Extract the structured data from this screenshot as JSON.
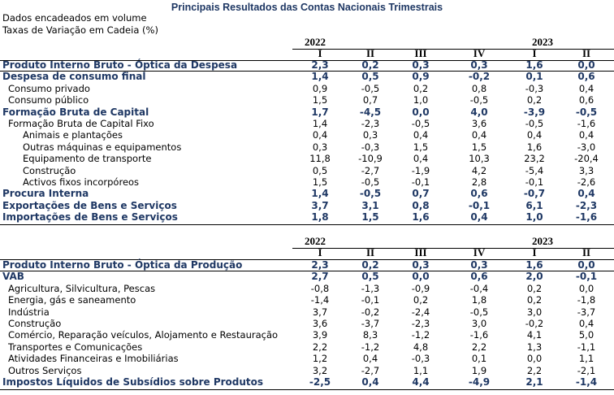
{
  "title": "Principais Resultados das Contas Nacionais Trimestrais",
  "notes": [
    "Dados encadeados em volume",
    "Taxas de Variação em Cadeia (%)"
  ],
  "years": [
    "2022",
    "2023"
  ],
  "quarters": [
    "I",
    "II",
    "III",
    "IV",
    "I",
    "II"
  ],
  "table1": [
    {
      "label": "Produto Interno Bruto - Óptica da Despesa",
      "style": "blue",
      "indent": 0,
      "values": [
        "2,3",
        "0,2",
        "0,3",
        "0,3",
        "1,6",
        "0,0"
      ]
    },
    {
      "label": "Despesa de consumo final",
      "style": "blue",
      "indent": 0,
      "values": [
        "1,4",
        "0,5",
        "0,9",
        "-0,2",
        "0,1",
        "0,6"
      ]
    },
    {
      "label": "Consumo privado",
      "style": "plain",
      "indent": 1,
      "values": [
        "0,9",
        "-0,5",
        "0,2",
        "0,8",
        "-0,3",
        "0,4"
      ]
    },
    {
      "label": "Consumo público",
      "style": "plain",
      "indent": 1,
      "values": [
        "1,5",
        "0,7",
        "1,0",
        "-0,5",
        "0,2",
        "0,6"
      ]
    },
    {
      "label": "Formação Bruta de Capital",
      "style": "blue",
      "indent": 0,
      "values": [
        "1,7",
        "-4,5",
        "0,0",
        "4,0",
        "-3,9",
        "-0,5"
      ]
    },
    {
      "label": "Formação Bruta de Capital Fixo",
      "style": "plain",
      "indent": 1,
      "values": [
        "1,4",
        "-2,3",
        "-0,5",
        "3,6",
        "-0,5",
        "-1,6"
      ]
    },
    {
      "label": "Animais e plantações",
      "style": "plain",
      "indent": 2,
      "values": [
        "0,4",
        "0,3",
        "0,4",
        "0,4",
        "0,4",
        "0,4"
      ]
    },
    {
      "label": "Outras máquinas e equipamentos",
      "style": "plain",
      "indent": 2,
      "values": [
        "0,3",
        "-0,3",
        "1,5",
        "1,5",
        "1,6",
        "-3,0"
      ]
    },
    {
      "label": "Equipamento de transporte",
      "style": "plain",
      "indent": 2,
      "values": [
        "11,8",
        "-10,9",
        "0,4",
        "10,3",
        "23,2",
        "-20,4"
      ]
    },
    {
      "label": "Construção",
      "style": "plain",
      "indent": 2,
      "values": [
        "0,5",
        "-2,7",
        "-1,9",
        "4,2",
        "-5,4",
        "3,3"
      ]
    },
    {
      "label": "Activos fixos incorpóreos",
      "style": "plain",
      "indent": 2,
      "values": [
        "1,5",
        "-0,5",
        "-0,1",
        "2,8",
        "-0,1",
        "-2,6"
      ]
    },
    {
      "label": "Procura Interna",
      "style": "blue",
      "indent": 0,
      "values": [
        "1,4",
        "-0,5",
        "0,7",
        "0,6",
        "-0,7",
        "0,4"
      ]
    },
    {
      "label": "Exportações de Bens e Serviços",
      "style": "blue",
      "indent": 0,
      "values": [
        "3,7",
        "3,1",
        "0,8",
        "-0,1",
        "6,1",
        "-2,3"
      ]
    },
    {
      "label": "Importações de Bens e Serviços",
      "style": "blue",
      "indent": 0,
      "values": [
        "1,8",
        "1,5",
        "1,6",
        "0,4",
        "1,0",
        "-1,6"
      ]
    }
  ],
  "table2": [
    {
      "label": "Produto Interno Bruto - Óptica da Produção",
      "style": "blue",
      "indent": 0,
      "values": [
        "2,3",
        "0,2",
        "0,3",
        "0,3",
        "1,6",
        "0,0"
      ]
    },
    {
      "label": "VAB",
      "style": "blue",
      "indent": 0,
      "values": [
        "2,7",
        "0,5",
        "0,0",
        "0,6",
        "2,0",
        "-0,1"
      ]
    },
    {
      "label": "Agricultura, Silvicultura, Pescas",
      "style": "plain",
      "indent": 1,
      "values": [
        "-0,8",
        "-1,3",
        "-0,9",
        "-0,4",
        "0,2",
        "0,0"
      ]
    },
    {
      "label": "Energia, gás e saneamento",
      "style": "plain",
      "indent": 1,
      "values": [
        "-1,4",
        "-0,1",
        "0,2",
        "1,8",
        "0,2",
        "-1,8"
      ]
    },
    {
      "label": "Indústria",
      "style": "plain",
      "indent": 1,
      "values": [
        "3,7",
        "-0,2",
        "-2,4",
        "-0,5",
        "3,0",
        "-3,7"
      ]
    },
    {
      "label": "Construção",
      "style": "plain",
      "indent": 1,
      "values": [
        "3,6",
        "-3,7",
        "-2,3",
        "3,0",
        "-0,2",
        "0,4"
      ]
    },
    {
      "label": "Comércio, Reparação veículos, Alojamento e Restauração",
      "style": "plain",
      "indent": 1,
      "values": [
        "3,9",
        "8,3",
        "-1,2",
        "-1,6",
        "4,1",
        "5,0"
      ]
    },
    {
      "label": "Transportes e Comunicações",
      "style": "plain",
      "indent": 1,
      "values": [
        "2,2",
        "-1,2",
        "4,8",
        "2,2",
        "1,3",
        "-1,1"
      ]
    },
    {
      "label": "Atividades Financeiras e Imobiliárias",
      "style": "plain",
      "indent": 1,
      "values": [
        "1,2",
        "0,4",
        "-0,3",
        "0,1",
        "0,0",
        "1,1"
      ]
    },
    {
      "label": "Outros Serviços",
      "style": "plain",
      "indent": 1,
      "values": [
        "3,2",
        "-2,7",
        "1,1",
        "1,9",
        "2,2",
        "-2,1"
      ]
    },
    {
      "label": "Impostos Líquidos de Subsídios sobre Produtos",
      "style": "blue",
      "indent": 0,
      "values": [
        "-2,5",
        "0,4",
        "4,4",
        "-4,9",
        "2,1",
        "-1,4"
      ]
    }
  ]
}
